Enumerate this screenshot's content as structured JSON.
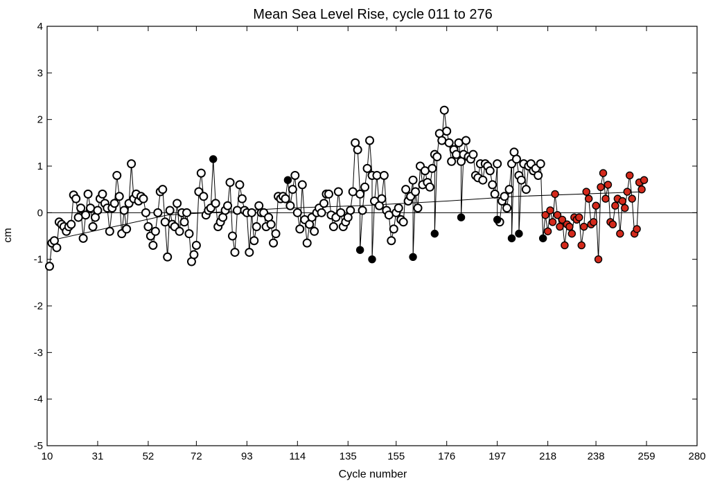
{
  "chart_data": {
    "type": "scatter",
    "title": "Mean Sea Level Rise, cycle 011 to 276",
    "xlabel": "Cycle number",
    "ylabel": "cm",
    "xlim": [
      10,
      280
    ],
    "ylim": [
      -5,
      4
    ],
    "xticks": [
      10,
      31,
      52,
      72,
      93,
      114,
      135,
      155,
      176,
      197,
      218,
      238,
      259,
      280
    ],
    "yticks": [
      -5,
      -4,
      -3,
      -2,
      -1,
      0,
      1,
      2,
      3,
      4
    ],
    "grid": false,
    "legend": "none",
    "colors": {
      "primary": "#000000",
      "secondary": "#d42a1c"
    },
    "series": [
      {
        "marker": "open-circle",
        "color": "#000000",
        "points": [
          [
            11,
            -1.15
          ],
          [
            12,
            -0.65
          ],
          [
            13,
            -0.6
          ],
          [
            14,
            -0.75
          ],
          [
            15,
            -0.2
          ],
          [
            16,
            -0.25
          ],
          [
            17,
            -0.3
          ],
          [
            18,
            -0.4
          ],
          [
            19,
            -0.3
          ],
          [
            20,
            -0.25
          ],
          [
            21,
            0.38
          ],
          [
            22,
            0.3
          ],
          [
            23,
            -0.1
          ],
          [
            24,
            0.1
          ],
          [
            25,
            -0.55
          ],
          [
            26,
            -0.05
          ],
          [
            27,
            0.4
          ],
          [
            28,
            0.1
          ],
          [
            29,
            -0.3
          ],
          [
            30,
            -0.1
          ],
          [
            31,
            0.05
          ],
          [
            32,
            0.3
          ],
          [
            33,
            0.4
          ],
          [
            34,
            0.2
          ],
          [
            35,
            0.1
          ],
          [
            36,
            -0.4
          ],
          [
            37,
            0.1
          ],
          [
            38,
            0.2
          ],
          [
            39,
            0.8
          ],
          [
            40,
            0.35
          ],
          [
            41,
            -0.45
          ],
          [
            42,
            0.05
          ],
          [
            43,
            -0.35
          ],
          [
            44,
            0.2
          ],
          [
            45,
            1.05
          ],
          [
            46,
            0.3
          ],
          [
            47,
            0.4
          ],
          [
            48,
            0.25
          ],
          [
            49,
            0.35
          ],
          [
            50,
            0.3
          ],
          [
            51,
            0.0
          ],
          [
            52,
            -0.3
          ],
          [
            53,
            -0.5
          ],
          [
            54,
            -0.7
          ],
          [
            55,
            -0.4
          ],
          [
            56,
            0.0
          ],
          [
            57,
            0.45
          ],
          [
            58,
            0.5
          ],
          [
            59,
            -0.2
          ],
          [
            60,
            -0.95
          ],
          [
            61,
            0.05
          ],
          [
            62,
            -0.25
          ],
          [
            63,
            -0.3
          ],
          [
            64,
            0.2
          ],
          [
            65,
            -0.4
          ],
          [
            66,
            0.0
          ],
          [
            67,
            -0.2
          ],
          [
            68,
            0.0
          ],
          [
            69,
            -0.45
          ],
          [
            70,
            -1.05
          ],
          [
            71,
            -0.9
          ],
          [
            72,
            -0.7
          ],
          [
            73,
            0.45
          ],
          [
            74,
            0.85
          ],
          [
            75,
            0.35
          ],
          [
            76,
            -0.05
          ],
          [
            77,
            0.05
          ],
          [
            78,
            0.1
          ],
          [
            80,
            0.2
          ],
          [
            81,
            -0.3
          ],
          [
            82,
            -0.2
          ],
          [
            83,
            -0.1
          ],
          [
            84,
            0.05
          ],
          [
            85,
            0.15
          ],
          [
            86,
            0.65
          ],
          [
            87,
            -0.5
          ],
          [
            88,
            -0.85
          ],
          [
            89,
            0.05
          ],
          [
            90,
            0.6
          ],
          [
            91,
            0.3
          ],
          [
            92,
            0.05
          ],
          [
            93,
            0.0
          ],
          [
            94,
            -0.85
          ],
          [
            95,
            0.0
          ],
          [
            96,
            -0.6
          ],
          [
            97,
            -0.3
          ],
          [
            98,
            0.15
          ],
          [
            99,
            0.0
          ],
          [
            100,
            0.0
          ],
          [
            101,
            -0.3
          ],
          [
            102,
            -0.1
          ],
          [
            103,
            -0.25
          ],
          [
            104,
            -0.65
          ],
          [
            105,
            -0.45
          ],
          [
            106,
            0.35
          ],
          [
            107,
            0.3
          ],
          [
            108,
            0.35
          ],
          [
            109,
            0.3
          ],
          [
            111,
            0.15
          ],
          [
            112,
            0.5
          ],
          [
            113,
            0.8
          ],
          [
            114,
            0.0
          ],
          [
            115,
            -0.35
          ],
          [
            116,
            0.6
          ],
          [
            117,
            -0.15
          ],
          [
            118,
            -0.65
          ],
          [
            119,
            -0.25
          ],
          [
            120,
            -0.1
          ],
          [
            121,
            -0.4
          ],
          [
            122,
            0.0
          ],
          [
            123,
            0.1
          ],
          [
            124,
            0.0
          ],
          [
            125,
            0.2
          ],
          [
            126,
            0.4
          ],
          [
            127,
            0.4
          ],
          [
            128,
            -0.05
          ],
          [
            129,
            -0.3
          ],
          [
            130,
            -0.1
          ],
          [
            131,
            0.45
          ],
          [
            132,
            0.0
          ],
          [
            133,
            -0.3
          ],
          [
            134,
            -0.2
          ],
          [
            135,
            -0.1
          ],
          [
            136,
            0.05
          ],
          [
            137,
            0.45
          ],
          [
            138,
            1.5
          ],
          [
            139,
            1.35
          ],
          [
            140,
            0.4
          ],
          [
            141,
            0.05
          ],
          [
            142,
            0.55
          ],
          [
            143,
            0.95
          ],
          [
            144,
            1.55
          ],
          [
            145,
            0.8
          ],
          [
            146,
            0.25
          ],
          [
            147,
            0.8
          ],
          [
            148,
            0.15
          ],
          [
            149,
            0.3
          ],
          [
            150,
            0.8
          ],
          [
            151,
            0.05
          ],
          [
            152,
            -0.05
          ],
          [
            153,
            -0.6
          ],
          [
            154,
            -0.35
          ],
          [
            155,
            0.0
          ],
          [
            156,
            0.1
          ],
          [
            157,
            -0.15
          ],
          [
            158,
            -0.2
          ],
          [
            159,
            0.5
          ],
          [
            160,
            0.25
          ],
          [
            161,
            0.35
          ],
          [
            162,
            0.7
          ],
          [
            163,
            0.45
          ],
          [
            164,
            0.1
          ],
          [
            165,
            1.0
          ],
          [
            166,
            0.6
          ],
          [
            167,
            0.9
          ],
          [
            168,
            0.65
          ],
          [
            169,
            0.55
          ],
          [
            170,
            0.95
          ],
          [
            171,
            1.25
          ],
          [
            172,
            1.2
          ],
          [
            173,
            1.7
          ],
          [
            174,
            1.55
          ],
          [
            175,
            2.2
          ],
          [
            176,
            1.75
          ],
          [
            177,
            1.5
          ],
          [
            178,
            1.1
          ],
          [
            179,
            1.35
          ],
          [
            180,
            1.25
          ],
          [
            181,
            1.5
          ],
          [
            182,
            1.1
          ],
          [
            183,
            1.25
          ],
          [
            184,
            1.55
          ],
          [
            185,
            1.2
          ],
          [
            186,
            1.15
          ],
          [
            187,
            1.25
          ],
          [
            188,
            0.8
          ],
          [
            189,
            0.75
          ],
          [
            190,
            1.05
          ],
          [
            191,
            0.7
          ],
          [
            192,
            1.05
          ],
          [
            193,
            1.0
          ],
          [
            194,
            0.9
          ],
          [
            195,
            0.6
          ],
          [
            196,
            0.4
          ],
          [
            197,
            1.05
          ],
          [
            198,
            -0.2
          ],
          [
            199,
            0.25
          ],
          [
            200,
            0.35
          ],
          [
            201,
            0.1
          ],
          [
            202,
            0.5
          ],
          [
            203,
            1.05
          ],
          [
            204,
            1.3
          ],
          [
            205,
            1.15
          ],
          [
            206,
            0.8
          ],
          [
            207,
            0.7
          ],
          [
            208,
            1.05
          ],
          [
            209,
            0.5
          ],
          [
            210,
            1.0
          ],
          [
            211,
            1.05
          ],
          [
            212,
            0.9
          ],
          [
            213,
            0.95
          ],
          [
            214,
            0.8
          ],
          [
            215,
            1.05
          ]
        ]
      },
      {
        "marker": "filled-circle",
        "color": "#000000",
        "points": [
          [
            79,
            1.15
          ],
          [
            110,
            0.7
          ],
          [
            140,
            -0.8
          ],
          [
            145,
            -1.0
          ],
          [
            162,
            -0.95
          ],
          [
            171,
            -0.45
          ],
          [
            182,
            -0.1
          ],
          [
            197,
            -0.15
          ],
          [
            203,
            -0.55
          ],
          [
            206,
            -0.45
          ],
          [
            216,
            -0.55
          ]
        ]
      },
      {
        "marker": "filled-circle",
        "color": "#d42a1c",
        "points": [
          [
            217,
            -0.05
          ],
          [
            218,
            -0.4
          ],
          [
            219,
            0.05
          ],
          [
            220,
            -0.2
          ],
          [
            221,
            0.4
          ],
          [
            222,
            -0.05
          ],
          [
            223,
            -0.3
          ],
          [
            224,
            -0.15
          ],
          [
            225,
            -0.7
          ],
          [
            226,
            -0.25
          ],
          [
            227,
            -0.3
          ],
          [
            228,
            -0.45
          ],
          [
            229,
            -0.1
          ],
          [
            230,
            -0.15
          ],
          [
            231,
            -0.1
          ],
          [
            232,
            -0.7
          ],
          [
            233,
            -0.3
          ],
          [
            234,
            0.45
          ],
          [
            235,
            0.3
          ],
          [
            236,
            -0.25
          ],
          [
            237,
            -0.2
          ],
          [
            238,
            0.15
          ],
          [
            239,
            -1.0
          ],
          [
            240,
            0.55
          ],
          [
            241,
            0.85
          ],
          [
            242,
            0.3
          ],
          [
            243,
            0.6
          ],
          [
            244,
            -0.2
          ],
          [
            245,
            -0.25
          ],
          [
            246,
            0.15
          ],
          [
            247,
            0.3
          ],
          [
            248,
            -0.45
          ],
          [
            249,
            0.25
          ],
          [
            250,
            0.1
          ],
          [
            251,
            0.45
          ],
          [
            252,
            0.8
          ],
          [
            253,
            0.3
          ],
          [
            254,
            -0.45
          ],
          [
            255,
            -0.35
          ],
          [
            256,
            0.65
          ],
          [
            257,
            0.5
          ],
          [
            258,
            0.7
          ]
        ]
      },
      {
        "marker": "none",
        "line": "trend",
        "color": "#000000",
        "points": [
          [
            11,
            -0.6
          ],
          [
            60,
            -0.05
          ],
          [
            110,
            0.1
          ],
          [
            140,
            0.15
          ],
          [
            176,
            0.25
          ],
          [
            205,
            0.35
          ],
          [
            258,
            0.45
          ]
        ]
      }
    ]
  }
}
